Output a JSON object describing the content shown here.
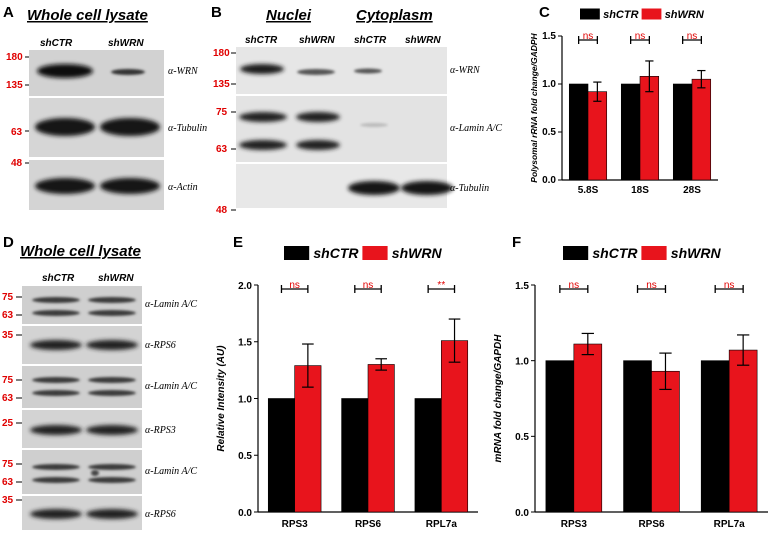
{
  "panel_letters": {
    "a": "A",
    "b": "B",
    "c": "C",
    "d": "D",
    "e": "E",
    "f": "F"
  },
  "blots": {
    "a": {
      "title": "Whole cell lysate",
      "lanes": [
        "shCTR",
        "shWRN"
      ],
      "antibodies": [
        "α-WRN",
        "α-Tubulin",
        "α-Actin"
      ],
      "markers": [
        "180",
        "135",
        "63",
        "48"
      ]
    },
    "b": {
      "title_left": "Nuclei",
      "title_right": "Cytoplasm",
      "lanes": [
        "shCTR",
        "shWRN",
        "shCTR",
        "shWRN"
      ],
      "antibodies": [
        "α-WRN",
        "α-Lamin A/C",
        "α-Tubulin"
      ],
      "markers": [
        "180",
        "135",
        "75",
        "63",
        "48"
      ]
    },
    "d": {
      "title": "Whole cell lysate",
      "lanes": [
        "shCTR",
        "shWRN"
      ],
      "antibodies": [
        "α-Lamin A/C",
        "α-RPS6",
        "α-Lamin A/C",
        "α-RPS3",
        "α-Lamin A/C",
        "α-RPS6"
      ],
      "markers": [
        "75",
        "63",
        "35",
        "75",
        "63",
        "25",
        "75",
        "63",
        "35"
      ]
    }
  },
  "chart_data": [
    {
      "panel": "C",
      "type": "bar",
      "categories": [
        "5.8S",
        "18S",
        "28S"
      ],
      "series": [
        {
          "name": "shCTR",
          "values": [
            1.0,
            1.0,
            1.0
          ],
          "errors": [
            0,
            0,
            0
          ]
        },
        {
          "name": "shWRN",
          "values": [
            0.92,
            1.08,
            1.05
          ],
          "errors": [
            0.1,
            0.16,
            0.09
          ]
        }
      ],
      "significance": [
        "ns",
        "ns",
        "ns"
      ],
      "ylabel": "Polysomal rRNA fold change/GADPH",
      "ylim": [
        0,
        1.5
      ],
      "yticks": [
        "0.0",
        "0.5",
        "1.0",
        "1.5"
      ],
      "legend": "top",
      "colors": {
        "shCTR": "#000000",
        "shWRN": "#e8141c"
      }
    },
    {
      "panel": "E",
      "type": "bar",
      "categories": [
        "RPS3",
        "RPS6",
        "RPL7a"
      ],
      "series": [
        {
          "name": "shCTR",
          "values": [
            1.0,
            1.0,
            1.0
          ],
          "errors": [
            0,
            0,
            0
          ]
        },
        {
          "name": "shWRN",
          "values": [
            1.29,
            1.3,
            1.51
          ],
          "errors": [
            0.19,
            0.05,
            0.19
          ]
        }
      ],
      "significance": [
        "ns",
        "ns",
        "**"
      ],
      "ylabel": "Relative Intensity (AU)",
      "ylim": [
        0,
        2.0
      ],
      "yticks": [
        "0.0",
        "0.5",
        "1.0",
        "1.5",
        "2.0"
      ],
      "legend": "top",
      "colors": {
        "shCTR": "#000000",
        "shWRN": "#e8141c"
      }
    },
    {
      "panel": "F",
      "type": "bar",
      "categories": [
        "RPS3",
        "RPS6",
        "RPL7a"
      ],
      "series": [
        {
          "name": "shCTR",
          "values": [
            1.0,
            1.0,
            1.0
          ],
          "errors": [
            0,
            0,
            0
          ]
        },
        {
          "name": "shWRN",
          "values": [
            1.11,
            0.93,
            1.07
          ],
          "errors": [
            0.07,
            0.12,
            0.1
          ]
        }
      ],
      "significance": [
        "ns",
        "ns",
        "ns"
      ],
      "ylabel": "mRNA fold change/GAPDH",
      "ylim": [
        0,
        1.5
      ],
      "yticks": [
        "0.0",
        "0.5",
        "1.0",
        "1.5"
      ],
      "legend": "top",
      "colors": {
        "shCTR": "#000000",
        "shWRN": "#e8141c"
      }
    }
  ]
}
